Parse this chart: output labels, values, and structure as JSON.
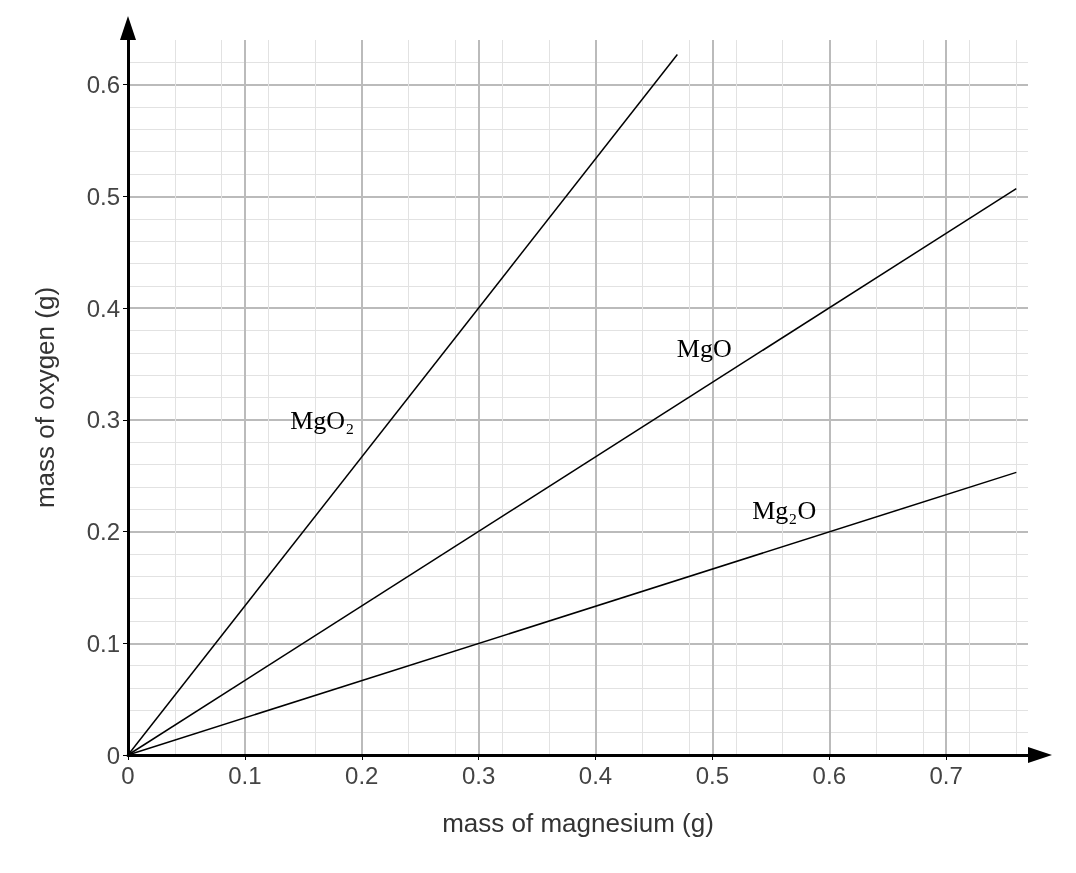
{
  "chart_data": {
    "type": "line",
    "xlabel": "mass of magnesium (g)",
    "ylabel": "mass of oxygen (g)",
    "xlim": [
      0,
      0.77
    ],
    "ylim": [
      0,
      0.64
    ],
    "xticks": [
      0,
      0.1,
      0.2,
      0.3,
      0.4,
      0.5,
      0.6,
      0.7
    ],
    "yticks": [
      0,
      0.1,
      0.2,
      0.3,
      0.4,
      0.5,
      0.6
    ],
    "grid": true,
    "marker": "none",
    "line_style": "solid",
    "legend": false,
    "series": [
      {
        "name": "MgO₂",
        "color": "#000000",
        "x": [
          0,
          0.47
        ],
        "values": [
          0,
          0.627
        ]
      },
      {
        "name": "MgO",
        "color": "#000000",
        "x": [
          0,
          0.76
        ],
        "values": [
          0,
          0.507
        ]
      },
      {
        "name": "Mg₂O",
        "color": "#000000",
        "x": [
          0,
          0.76
        ],
        "values": [
          0,
          0.253
        ]
      }
    ]
  }
}
